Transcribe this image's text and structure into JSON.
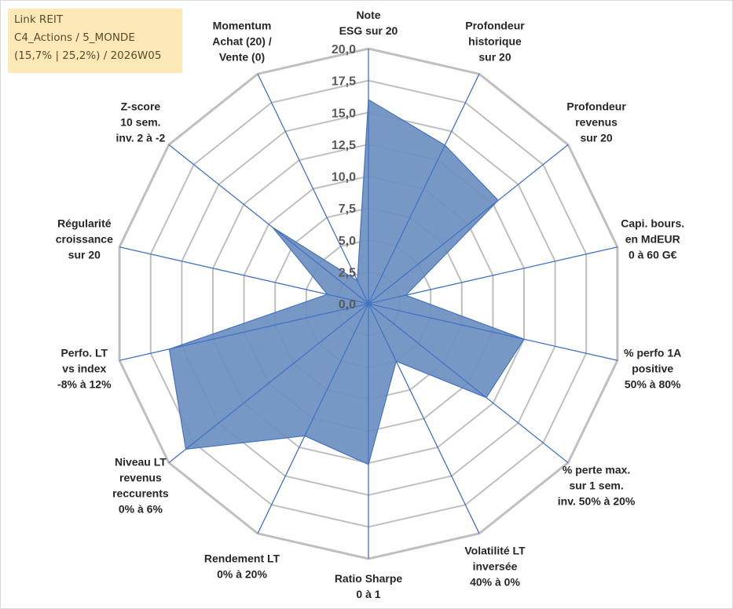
{
  "info_box": {
    "line1": "Link REIT",
    "line2": "C4_Actions / 5_MONDE",
    "line3": "(15,7% | 25,2%) / 2026W05"
  },
  "colors": {
    "series_fill": "#6b8fbf",
    "series_stroke": "#4472c4",
    "spokes": "#4472c4",
    "grid": "#bfbfbf",
    "info_box_bg": "#fde9b8"
  },
  "chart_data": {
    "type": "radar",
    "title": "",
    "rmin": 0,
    "rmax": 20,
    "ticks": [
      "0,0",
      "2,5",
      "5,0",
      "7,5",
      "10,0",
      "12,5",
      "15,0",
      "17,5",
      "20,0"
    ],
    "tick_values": [
      0,
      2.5,
      5,
      7.5,
      10,
      12.5,
      15,
      17.5,
      20
    ],
    "grid": true,
    "axes": [
      {
        "lines": [
          "Note",
          "ESG sur 20"
        ]
      },
      {
        "lines": [
          "Profondeur",
          "historique",
          "sur 20"
        ]
      },
      {
        "lines": [
          "Profondeur",
          "revenus",
          "sur 20"
        ]
      },
      {
        "lines": [
          "Capi. bours.",
          "en MdEUR",
          "0 à 60 G€"
        ]
      },
      {
        "lines": [
          "% perfo 1A",
          "positive",
          "50% à 80%"
        ]
      },
      {
        "lines": [
          "% perte max.",
          "sur 1 sem.",
          "inv. 50% à 20%"
        ]
      },
      {
        "lines": [
          "Volatilité LT",
          "inversée",
          "40% à 0%"
        ]
      },
      {
        "lines": [
          "Ratio Sharpe",
          "0 à 1"
        ]
      },
      {
        "lines": [
          "Rendement LT",
          "0% à 20%"
        ]
      },
      {
        "lines": [
          "Niveau LT",
          "revenus",
          "reccurents",
          "0% à 6%"
        ]
      },
      {
        "lines": [
          "Perfo. LT",
          "vs index",
          "-8% à 12%"
        ]
      },
      {
        "lines": [
          "Régularité",
          "croissance",
          "sur 20"
        ]
      },
      {
        "lines": [
          "Z-score",
          "10 sem.",
          "inv. 2 à -2"
        ]
      },
      {
        "lines": [
          "Momentum",
          "Achat (20) /",
          "Vente (0)"
        ]
      }
    ],
    "series": [
      {
        "values": [
          16.0,
          13.8,
          13.0,
          3.0,
          12.5,
          11.8,
          5.0,
          12.6,
          11.5,
          18.3,
          16.0,
          3.3,
          9.6,
          2.0
        ]
      }
    ]
  }
}
